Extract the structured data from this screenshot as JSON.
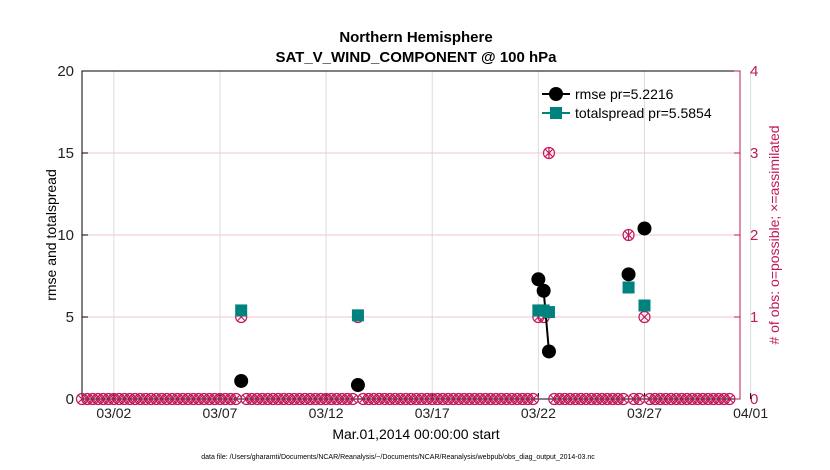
{
  "chart_data": {
    "type": "scatter",
    "title": "Northern Hemisphere",
    "subtitle": "SAT_V_WIND_COMPONENT @ 100 hPa",
    "xlabel": "Mar.01,2014 00:00:00 start",
    "ylabel": "rmse and totalspread",
    "ylabel_right": "# of obs: o=possible; ×=assimilated",
    "xlim": [
      0.5,
      31
    ],
    "ylim": [
      0,
      20
    ],
    "ylim_right": [
      0,
      4
    ],
    "x_ticks": [
      {
        "x": 2,
        "label": "03/02"
      },
      {
        "x": 7,
        "label": "03/07"
      },
      {
        "x": 12,
        "label": "03/12"
      },
      {
        "x": 17,
        "label": "03/17"
      },
      {
        "x": 22,
        "label": "03/22"
      },
      {
        "x": 27,
        "label": "03/27"
      },
      {
        "x": 32,
        "label": "04/01"
      }
    ],
    "y_ticks_left": [
      {
        "v": 0,
        "label": "0"
      },
      {
        "v": 5,
        "label": "5"
      },
      {
        "v": 10,
        "label": "10"
      },
      {
        "v": 15,
        "label": "15"
      },
      {
        "v": 20,
        "label": "20"
      }
    ],
    "y_ticks_right": [
      {
        "v": 0,
        "label": "0"
      },
      {
        "v": 1,
        "label": "1"
      },
      {
        "v": 2,
        "label": "2"
      },
      {
        "v": 3,
        "label": "3"
      },
      {
        "v": 4,
        "label": "4"
      }
    ],
    "series": [
      {
        "name": "rmse",
        "legend": "rmse pr=5.2216",
        "color": "#000000",
        "marker": "circle",
        "points": [
          {
            "x": 8.0,
            "y": 1.1
          },
          {
            "x": 13.5,
            "y": 0.85
          },
          {
            "x": 22.0,
            "y": 7.3
          },
          {
            "x": 22.25,
            "y": 6.6
          },
          {
            "x": 22.5,
            "y": 2.9
          },
          {
            "x": 26.25,
            "y": 7.6
          },
          {
            "x": 27.0,
            "y": 10.4
          }
        ],
        "line_segments": [
          [
            22.0,
            22.25,
            22.5
          ]
        ]
      },
      {
        "name": "totalspread",
        "legend": "totalspread pr=5.5854",
        "color": "#00837e",
        "marker": "square",
        "points": [
          {
            "x": 8.0,
            "y": 5.4
          },
          {
            "x": 13.5,
            "y": 5.1
          },
          {
            "x": 22.0,
            "y": 5.4
          },
          {
            "x": 22.25,
            "y": 5.4
          },
          {
            "x": 22.5,
            "y": 5.3
          },
          {
            "x": 26.25,
            "y": 6.8
          },
          {
            "x": 27.0,
            "y": 5.7
          }
        ],
        "line_segments": [
          [
            22.0,
            22.25,
            22.5
          ]
        ]
      }
    ],
    "obs_counts": {
      "color": "#c2185b",
      "possible_and_assimilated": [
        {
          "x": 8.0,
          "n": 1
        },
        {
          "x": 13.5,
          "n": 1
        },
        {
          "x": 22.0,
          "n": 1
        },
        {
          "x": 22.25,
          "n": 1
        },
        {
          "x": 22.5,
          "n": 3
        },
        {
          "x": 26.25,
          "n": 2
        },
        {
          "x": 27.0,
          "n": 1
        }
      ],
      "zero_time_step_days": 0.25,
      "zero_range": [
        0.5,
        31
      ]
    },
    "grid": true,
    "legend_position": "top-right"
  },
  "footnote": "data file: /Users/gharamti/Documents/NCAR/Reanalysis/~/Documents/NCAR/Reanalysis/webpub/obs_diag_output_2014-03.nc"
}
